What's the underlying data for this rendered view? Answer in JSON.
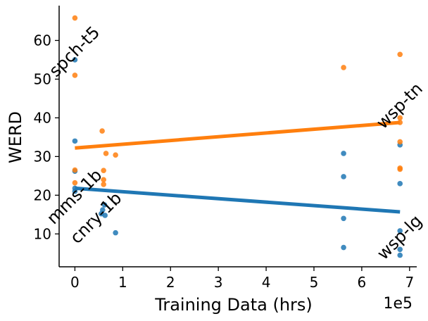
{
  "chart_data": {
    "type": "scatter",
    "xlabel": "Training Data (hrs)",
    "ylabel": "WERD",
    "x_scale_label": "1e5",
    "xlim": [
      -0.33,
      7.15
    ],
    "ylim": [
      1.5,
      69
    ],
    "x_ticks": [
      0,
      1,
      2,
      3,
      4,
      5,
      6,
      7
    ],
    "y_ticks": [
      10,
      20,
      30,
      40,
      50,
      60
    ],
    "series": [
      {
        "name": "blue",
        "color": "#1f77b4",
        "points": [
          {
            "x": 0.0,
            "y": 55.0
          },
          {
            "x": 0.0,
            "y": 34.0
          },
          {
            "x": 0.0,
            "y": 26.2
          },
          {
            "x": 0.0,
            "y": 21.8
          },
          {
            "x": 0.0,
            "y": 21.0
          },
          {
            "x": 0.55,
            "y": 15.2
          },
          {
            "x": 0.58,
            "y": 16.2
          },
          {
            "x": 0.62,
            "y": 17.5
          },
          {
            "x": 0.63,
            "y": 14.8
          },
          {
            "x": 0.85,
            "y": 10.3
          },
          {
            "x": 5.62,
            "y": 30.8
          },
          {
            "x": 5.62,
            "y": 24.8
          },
          {
            "x": 5.62,
            "y": 14.0
          },
          {
            "x": 5.62,
            "y": 6.5
          },
          {
            "x": 6.8,
            "y": 33.0
          },
          {
            "x": 6.8,
            "y": 23.0
          },
          {
            "x": 6.8,
            "y": 10.8
          },
          {
            "x": 6.8,
            "y": 6.0
          },
          {
            "x": 6.8,
            "y": 4.5
          }
        ],
        "fit": [
          {
            "x": 0.0,
            "y": 21.8
          },
          {
            "x": 6.8,
            "y": 15.7
          }
        ]
      },
      {
        "name": "orange",
        "color": "#ff7f0e",
        "points": [
          {
            "x": 0.0,
            "y": 65.8
          },
          {
            "x": 0.0,
            "y": 51.0
          },
          {
            "x": 0.0,
            "y": 26.5
          },
          {
            "x": 0.0,
            "y": 23.2
          },
          {
            "x": 0.57,
            "y": 36.6
          },
          {
            "x": 0.6,
            "y": 26.4
          },
          {
            "x": 0.6,
            "y": 24.0
          },
          {
            "x": 0.6,
            "y": 22.8
          },
          {
            "x": 0.65,
            "y": 30.8
          },
          {
            "x": 0.85,
            "y": 30.4
          },
          {
            "x": 5.62,
            "y": 53.0
          },
          {
            "x": 6.8,
            "y": 56.4
          },
          {
            "x": 6.8,
            "y": 40.0
          },
          {
            "x": 6.8,
            "y": 38.8
          },
          {
            "x": 6.8,
            "y": 33.8
          },
          {
            "x": 6.8,
            "y": 27.0
          },
          {
            "x": 6.8,
            "y": 26.7
          }
        ],
        "fit": [
          {
            "x": 0.0,
            "y": 32.2
          },
          {
            "x": 6.8,
            "y": 38.8
          }
        ]
      }
    ],
    "annotations": [
      {
        "text": "spch-t5",
        "x": 0.0,
        "y": 57.0
      },
      {
        "text": "mms-1b",
        "x": 0.0,
        "y": 19.5
      },
      {
        "text": "cnry-1b",
        "x": 0.45,
        "y": 14.0
      },
      {
        "text": "wsp-tn",
        "x": 6.8,
        "y": 43.0
      },
      {
        "text": "wsp-lg",
        "x": 6.8,
        "y": 9.0
      }
    ]
  }
}
